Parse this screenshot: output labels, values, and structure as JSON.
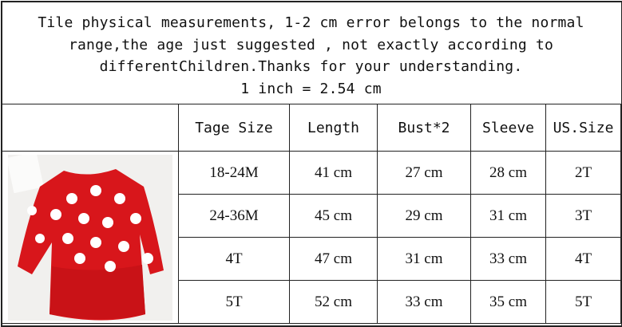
{
  "note": {
    "lines": [
      "Tile physical measurements, 1-2 cm error belongs to the normal",
      "range,the age just suggested , not exactly according to",
      "differentChildren.Thanks for your understanding.",
      "1 inch = 2.54 cm"
    ]
  },
  "table": {
    "headers": [
      "Tage Size",
      "Length",
      "Bust*2",
      "Sleeve",
      "US.Size"
    ],
    "rows": [
      [
        "18-24M",
        "41 cm",
        "27 cm",
        "28 cm",
        "2T"
      ],
      [
        "24-36M",
        "45 cm",
        "29 cm",
        "31 cm",
        "3T"
      ],
      [
        "4T",
        "47 cm",
        "31 cm",
        "33 cm",
        "4T"
      ],
      [
        "5T",
        "52 cm",
        "33 cm",
        "35 cm",
        "5T"
      ]
    ]
  },
  "colors": {
    "dress": "#d8161b",
    "hearts": "#ffffff",
    "border": "#222222"
  }
}
